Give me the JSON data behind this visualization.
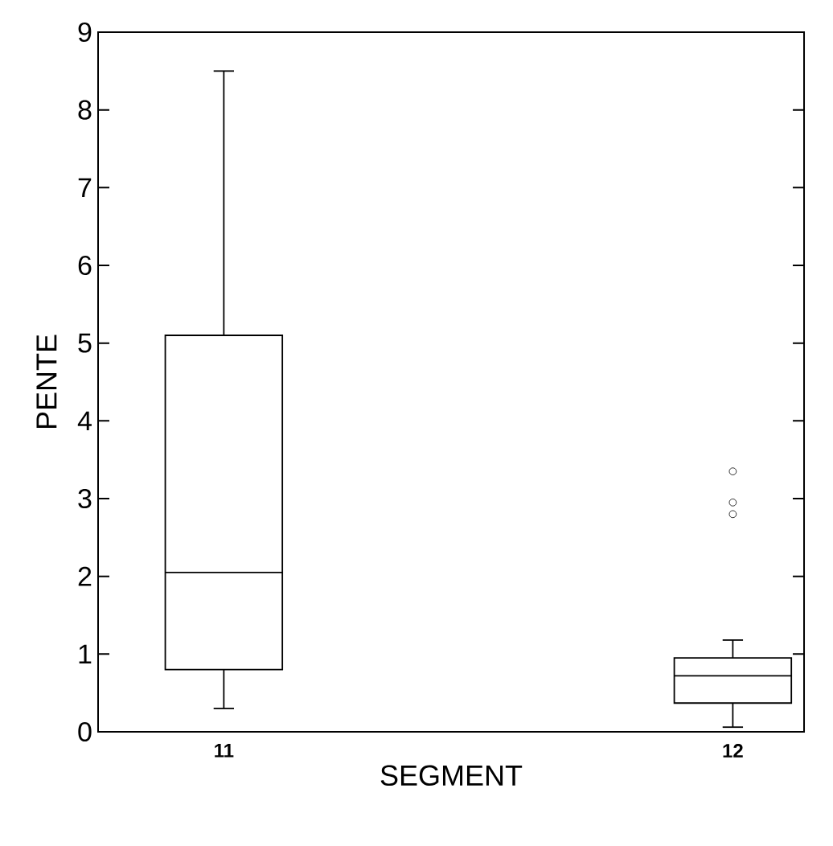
{
  "chart_data": {
    "type": "box",
    "xlabel": "SEGMENT",
    "ylabel": "PENTE",
    "categories": [
      "11",
      "12"
    ],
    "boxes": [
      {
        "low": 0.3,
        "q1": 0.8,
        "median": 2.05,
        "q3": 5.1,
        "high": 8.5
      },
      {
        "low": 0.06,
        "q1": 0.37,
        "median": 0.72,
        "q3": 0.95,
        "high": 1.18,
        "outliers": [
          2.8,
          2.95,
          3.35
        ]
      }
    ],
    "color": "#000000",
    "ylim": [
      0,
      9
    ],
    "yticks": [
      0,
      1,
      2,
      3,
      4,
      5,
      6,
      7,
      8,
      9
    ],
    "grid": false
  }
}
